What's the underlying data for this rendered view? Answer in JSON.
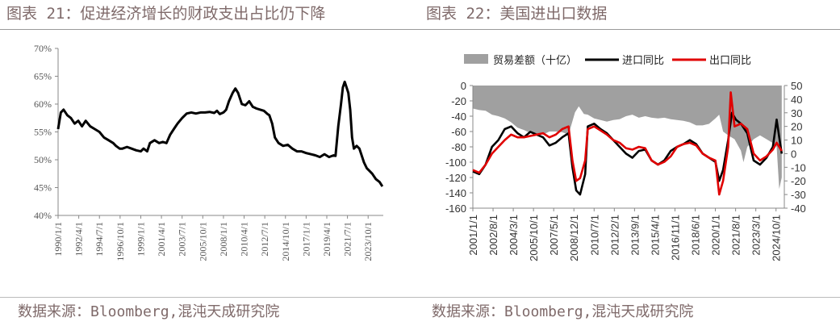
{
  "left_title": "图表 21：促进经济增长的财政支出占比仍下降",
  "right_title": "图表 22：美国进出口数据",
  "left_source": "数据来源：Bloomberg,混沌天成研究院",
  "right_source": "数据来源：Bloomberg,混沌天成研究院",
  "chart_data": [
    {
      "type": "line",
      "title": "",
      "ylim": [
        0.4,
        0.7
      ],
      "y_ticks": [
        "40%",
        "45%",
        "50%",
        "55%",
        "60%",
        "65%",
        "70%"
      ],
      "x_ticks": [
        "1990/1/1",
        "1992/4/1",
        "1994/7/1",
        "1996/10/1",
        "1999/1/1",
        "2001/4/1",
        "2003/7/1",
        "2005/10/1",
        "2008/1/1",
        "2010/4/1",
        "2012/7/1",
        "2014/10/1",
        "2017/1/1",
        "2019/4/1",
        "2021/7/1",
        "2023/10/1"
      ],
      "grid": false,
      "series": [
        {
          "color": "#000000",
          "x": [
            1990.0,
            1990.3,
            1990.6,
            1991.0,
            1991.4,
            1991.8,
            1992.2,
            1992.6,
            1993.0,
            1993.5,
            1994.0,
            1994.5,
            1995.0,
            1995.5,
            1996.0,
            1996.3,
            1996.7,
            1997.0,
            1997.5,
            1998.0,
            1998.5,
            1999.0,
            1999.3,
            1999.7,
            2000.0,
            2000.5,
            2001.0,
            2001.4,
            2001.8,
            2002.2,
            2002.6,
            2003.0,
            2003.5,
            2004.0,
            2004.5,
            2005.0,
            2005.5,
            2006.0,
            2006.5,
            2007.0,
            2007.3,
            2007.6,
            2008.0,
            2008.3,
            2008.6,
            2009.0,
            2009.3,
            2009.6,
            2010.0,
            2010.4,
            2010.8,
            2011.2,
            2011.6,
            2012.0,
            2012.4,
            2012.8,
            2013.0,
            2013.3,
            2013.6,
            2014.0,
            2014.5,
            2015.0,
            2015.5,
            2016.0,
            2016.5,
            2017.0,
            2017.5,
            2018.0,
            2018.5,
            2019.0,
            2019.5,
            2020.0,
            2020.2,
            2020.5,
            2020.8,
            2021.0,
            2021.2,
            2021.4,
            2021.6,
            2021.8,
            2022.0,
            2022.2,
            2022.5,
            2022.8,
            2023.0,
            2023.3,
            2023.6,
            2023.9,
            2024.2,
            2024.6,
            2025.0,
            2025.3
          ],
          "y": [
            0.555,
            0.585,
            0.59,
            0.58,
            0.575,
            0.565,
            0.57,
            0.56,
            0.57,
            0.56,
            0.555,
            0.55,
            0.54,
            0.535,
            0.53,
            0.525,
            0.52,
            0.52,
            0.523,
            0.52,
            0.517,
            0.515,
            0.52,
            0.515,
            0.53,
            0.535,
            0.53,
            0.532,
            0.53,
            0.545,
            0.555,
            0.565,
            0.575,
            0.583,
            0.585,
            0.583,
            0.585,
            0.585,
            0.586,
            0.584,
            0.588,
            0.582,
            0.585,
            0.59,
            0.605,
            0.62,
            0.628,
            0.62,
            0.6,
            0.598,
            0.605,
            0.595,
            0.592,
            0.59,
            0.588,
            0.582,
            0.58,
            0.565,
            0.54,
            0.53,
            0.525,
            0.527,
            0.52,
            0.515,
            0.515,
            0.512,
            0.51,
            0.508,
            0.505,
            0.51,
            0.505,
            0.508,
            0.507,
            0.56,
            0.6,
            0.63,
            0.64,
            0.63,
            0.62,
            0.59,
            0.54,
            0.52,
            0.525,
            0.52,
            0.51,
            0.495,
            0.485,
            0.48,
            0.475,
            0.465,
            0.46,
            0.452
          ]
        }
      ]
    },
    {
      "type": "line+area",
      "title": "",
      "y_left_ticks": [
        "0",
        "-20",
        "-40",
        "-60",
        "-80",
        "-100",
        "-120",
        "-140",
        "-160"
      ],
      "y_right_ticks": [
        "50",
        "40",
        "30",
        "20",
        "10",
        "0",
        "-10",
        "-20",
        "-30",
        "-40"
      ],
      "ylim_left": [
        -160,
        0
      ],
      "ylim_right": [
        -40,
        50
      ],
      "x_ticks": [
        "2001/1/1",
        "2002/8/1",
        "2004/3/1",
        "2005/10/1",
        "2007/5/1",
        "2008/12/1",
        "2010/7/1",
        "2012/2/1",
        "2013/9/1",
        "2015/4/1",
        "2016/11/1",
        "2018/6/1",
        "2020/1/1",
        "2021/8/1",
        "2023/3/1",
        "2024/10/1"
      ],
      "legend": {
        "position": "top"
      },
      "series": [
        {
          "name": "贸易差额（十亿）",
          "axis": "left",
          "kind": "area",
          "color": "#a0a0a0",
          "x": [
            2001.0,
            2001.5,
            2002.0,
            2002.5,
            2003.0,
            2003.5,
            2004.0,
            2004.5,
            2005.0,
            2005.5,
            2006.0,
            2006.5,
            2007.0,
            2007.5,
            2008.0,
            2008.5,
            2009.0,
            2009.3,
            2009.7,
            2010.0,
            2010.5,
            2011.0,
            2011.5,
            2012.0,
            2012.5,
            2013.0,
            2013.5,
            2014.0,
            2014.5,
            2015.0,
            2015.5,
            2016.0,
            2016.5,
            2017.0,
            2017.5,
            2018.0,
            2018.5,
            2019.0,
            2019.5,
            2020.0,
            2020.3,
            2020.6,
            2021.0,
            2021.5,
            2022.0,
            2022.2,
            2022.5,
            2023.0,
            2023.5,
            2024.0,
            2024.5,
            2024.8,
            2025.0,
            2025.2
          ],
          "y": [
            -30,
            -32,
            -33,
            -38,
            -40,
            -43,
            -48,
            -55,
            -58,
            -62,
            -63,
            -64,
            -60,
            -60,
            -61,
            -64,
            -35,
            -27,
            -37,
            -38,
            -43,
            -45,
            -47,
            -45,
            -44,
            -40,
            -38,
            -42,
            -40,
            -42,
            -43,
            -42,
            -44,
            -45,
            -46,
            -48,
            -52,
            -52,
            -50,
            -43,
            -38,
            -60,
            -65,
            -70,
            -85,
            -100,
            -80,
            -70,
            -65,
            -70,
            -75,
            -80,
            -135,
            -120
          ]
        },
        {
          "name": "进口同比",
          "axis": "right",
          "kind": "line",
          "color": "#000000",
          "x": [
            2001.0,
            2001.5,
            2002.0,
            2002.5,
            2003.0,
            2003.5,
            2004.0,
            2004.5,
            2005.0,
            2005.5,
            2006.0,
            2006.5,
            2007.0,
            2007.5,
            2008.0,
            2008.5,
            2008.8,
            2009.1,
            2009.4,
            2009.8,
            2010.0,
            2010.5,
            2011.0,
            2011.5,
            2012.0,
            2012.5,
            2013.0,
            2013.5,
            2014.0,
            2014.5,
            2015.0,
            2015.5,
            2016.0,
            2016.5,
            2017.0,
            2017.5,
            2018.0,
            2018.5,
            2019.0,
            2019.5,
            2020.0,
            2020.3,
            2020.6,
            2021.0,
            2021.3,
            2021.6,
            2022.0,
            2022.5,
            2023.0,
            2023.5,
            2024.0,
            2024.5,
            2024.8,
            2025.0,
            2025.2
          ],
          "y": [
            -13,
            -15,
            -8,
            5,
            10,
            18,
            20,
            15,
            12,
            16,
            14,
            12,
            6,
            8,
            12,
            15,
            -10,
            -27,
            -30,
            -15,
            20,
            22,
            18,
            15,
            10,
            5,
            0,
            -3,
            2,
            3,
            -5,
            -8,
            -5,
            2,
            5,
            7,
            10,
            7,
            0,
            -3,
            -6,
            -20,
            -12,
            10,
            30,
            25,
            22,
            15,
            -5,
            -8,
            -3,
            5,
            25,
            12,
            0
          ]
        },
        {
          "name": "出口同比",
          "axis": "right",
          "kind": "line",
          "color": "#e00000",
          "x": [
            2001.0,
            2001.5,
            2002.0,
            2002.5,
            2003.0,
            2003.5,
            2004.0,
            2004.5,
            2005.0,
            2005.5,
            2006.0,
            2006.5,
            2007.0,
            2007.5,
            2008.0,
            2008.5,
            2008.8,
            2009.1,
            2009.4,
            2009.8,
            2010.0,
            2010.5,
            2011.0,
            2011.5,
            2012.0,
            2012.5,
            2013.0,
            2013.5,
            2014.0,
            2014.5,
            2015.0,
            2015.5,
            2016.0,
            2016.5,
            2017.0,
            2017.5,
            2018.0,
            2018.5,
            2019.0,
            2019.5,
            2020.0,
            2020.3,
            2020.6,
            2021.0,
            2021.2,
            2021.5,
            2022.0,
            2022.5,
            2023.0,
            2023.5,
            2024.0,
            2024.5,
            2024.8,
            2025.0,
            2025.2
          ],
          "y": [
            -12,
            -14,
            -8,
            0,
            5,
            10,
            14,
            12,
            12,
            13,
            14,
            15,
            12,
            14,
            18,
            20,
            -5,
            -20,
            -18,
            -5,
            18,
            20,
            17,
            14,
            10,
            8,
            4,
            3,
            5,
            4,
            -5,
            -8,
            -6,
            -2,
            5,
            7,
            8,
            6,
            0,
            -3,
            -5,
            -30,
            -20,
            5,
            45,
            20,
            22,
            18,
            0,
            -5,
            -2,
            3,
            8,
            5,
            2
          ]
        }
      ]
    }
  ]
}
